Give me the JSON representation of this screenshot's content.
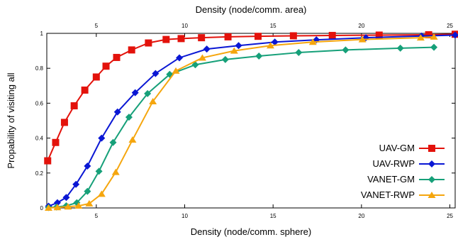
{
  "chart_data": {
    "type": "line",
    "top_axis_label": "Density (node/comm. area)",
    "xlabel": "Density (node/comm. sphere)",
    "ylabel": "Propability of visiting all",
    "xlim": [
      2.2,
      25.3
    ],
    "ylim": [
      0,
      1
    ],
    "x_ticks": [
      5,
      10,
      15,
      20,
      25
    ],
    "y_ticks": [
      0,
      0.2,
      0.4,
      0.6,
      0.8,
      1
    ],
    "y_tick_labels": [
      "0",
      "0.2",
      "0.4",
      "0.6",
      "0.8",
      "1"
    ],
    "top_xlim": [
      2.2,
      25.3
    ],
    "top_x_ticks": [
      5,
      10,
      15,
      20,
      25
    ],
    "grid": false,
    "legend_position": "bottom-right",
    "series": [
      {
        "name": "UAV-GM",
        "color": "#e3120b",
        "marker": "square",
        "x": [
          2.25,
          2.7,
          3.2,
          3.75,
          4.35,
          5.0,
          5.55,
          6.15,
          7.0,
          7.95,
          8.95,
          9.8,
          10.95,
          12.45,
          14.15,
          16.15,
          18.35,
          21.0,
          23.8,
          25.3
        ],
        "y": [
          0.27,
          0.375,
          0.49,
          0.585,
          0.675,
          0.75,
          0.812,
          0.862,
          0.905,
          0.945,
          0.965,
          0.97,
          0.975,
          0.98,
          0.983,
          0.986,
          0.988,
          0.99,
          0.992,
          0.995
        ]
      },
      {
        "name": "UAV-RWP",
        "color": "#0a17d4",
        "marker": "diamond",
        "x": [
          2.3,
          2.8,
          3.3,
          3.85,
          4.5,
          5.3,
          6.2,
          7.2,
          8.35,
          9.7,
          11.25,
          13.05,
          15.1,
          17.45,
          20.25,
          23.4,
          25.3
        ],
        "y": [
          0.01,
          0.03,
          0.06,
          0.135,
          0.24,
          0.4,
          0.55,
          0.66,
          0.77,
          0.86,
          0.91,
          0.93,
          0.95,
          0.963,
          0.975,
          0.985,
          0.99
        ]
      },
      {
        "name": "VANET-GM",
        "color": "#16a079",
        "marker": "diamond",
        "x": [
          2.3,
          2.75,
          3.3,
          3.9,
          4.5,
          5.15,
          5.95,
          6.85,
          7.9,
          9.15,
          10.6,
          12.3,
          14.2,
          16.45,
          19.1,
          22.2,
          24.1
        ],
        "y": [
          0.002,
          0.005,
          0.012,
          0.03,
          0.095,
          0.21,
          0.375,
          0.52,
          0.655,
          0.765,
          0.82,
          0.85,
          0.87,
          0.89,
          0.905,
          0.915,
          0.92
        ]
      },
      {
        "name": "VANET-RWP",
        "color": "#f5a60e",
        "marker": "triangle",
        "x": [
          2.3,
          2.8,
          3.4,
          4.0,
          4.6,
          5.3,
          6.1,
          7.05,
          8.2,
          9.5,
          11.0,
          12.8,
          14.85,
          17.25,
          20.05,
          23.35,
          24.1
        ],
        "y": [
          0.0,
          0.003,
          0.007,
          0.012,
          0.025,
          0.08,
          0.205,
          0.39,
          0.61,
          0.785,
          0.86,
          0.9,
          0.93,
          0.95,
          0.965,
          0.975,
          0.98
        ]
      }
    ]
  }
}
